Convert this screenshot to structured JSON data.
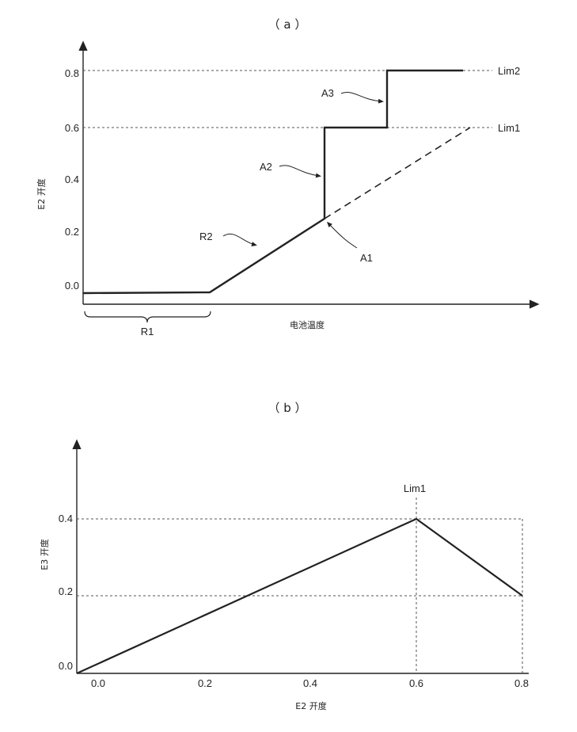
{
  "chart_data": [
    {
      "type": "line",
      "title": "（ a ）",
      "xlabel": "电池温度",
      "ylabel": "E2 开度",
      "y_ticks": [
        "0.0",
        "0.2",
        "0.4",
        "0.6",
        "0.8"
      ],
      "ylim": [
        -0.05,
        0.9
      ],
      "reference_lines": [
        {
          "name": "Lim1",
          "y": 0.6
        },
        {
          "name": "Lim2",
          "y": 0.82
        }
      ],
      "series": [
        {
          "style": "solid",
          "points": [
            [
              0.0,
              -0.03
            ],
            [
              0.3,
              -0.03
            ],
            [
              0.575,
              0.25
            ],
            [
              0.575,
              0.6
            ],
            [
              0.72,
              0.6
            ],
            [
              0.72,
              0.82
            ],
            [
              0.885,
              0.82
            ]
          ]
        },
        {
          "style": "dashed",
          "points": [
            [
              0.575,
              0.25
            ],
            [
              0.92,
              0.6
            ]
          ]
        }
      ],
      "annotations": [
        "R1",
        "R2",
        "A1",
        "A2",
        "A3"
      ]
    },
    {
      "type": "line",
      "title": "（ b ）",
      "xlabel": "E2 开度",
      "ylabel": "E3 开度",
      "x_ticks": [
        "0.0",
        "0.2",
        "0.4",
        "0.6",
        "0.8"
      ],
      "y_ticks": [
        "0.0",
        "0.2",
        "0.4"
      ],
      "xlim": [
        0,
        0.8
      ],
      "ylim": [
        0,
        0.6
      ],
      "series": [
        {
          "style": "solid",
          "points": [
            [
              0.0,
              0.0
            ],
            [
              0.6,
              0.4
            ],
            [
              0.8,
              0.2
            ]
          ]
        }
      ],
      "annotations": [
        "Lim1"
      ]
    }
  ]
}
